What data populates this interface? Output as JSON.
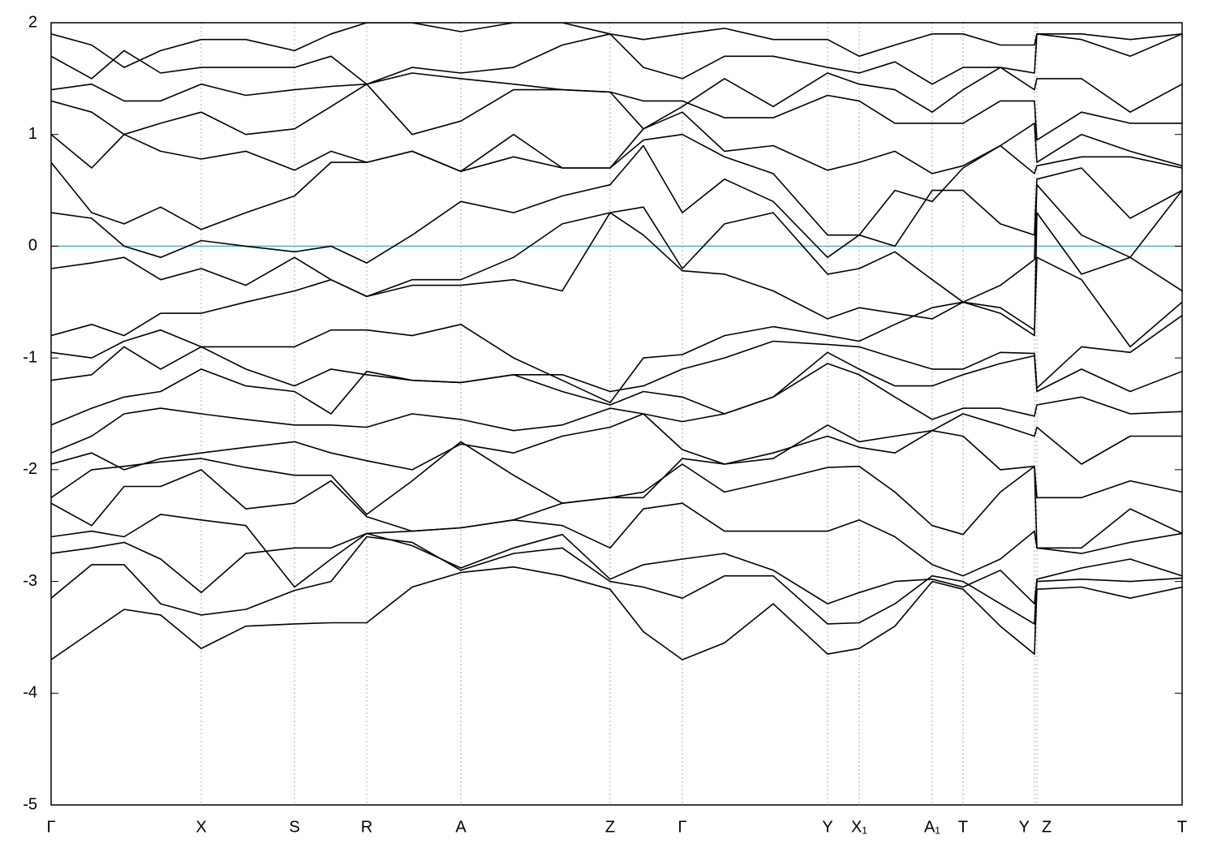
{
  "chart_data": {
    "type": "line",
    "x": [
      0,
      0.5,
      0.9,
      1.35,
      1.85,
      2.4,
      3.0,
      3.45,
      3.89,
      4.45,
      5.05,
      5.7,
      6.3,
      6.89,
      7.3,
      7.78,
      8.3,
      8.9,
      9.57,
      9.96,
      10.4,
      10.86,
      11.24,
      11.7,
      12.12,
      12.15,
      12.7,
      13.3,
      13.94
    ],
    "xlim": [
      0,
      13.94
    ],
    "xticks": [
      {
        "value": 0,
        "label": "Γ"
      },
      {
        "value": 1.85,
        "label": "X"
      },
      {
        "value": 3.0,
        "label": "S"
      },
      {
        "value": 3.89,
        "label": "R"
      },
      {
        "value": 5.05,
        "label": "A"
      },
      {
        "value": 6.89,
        "label": "Z"
      },
      {
        "value": 7.78,
        "label": "Γ"
      },
      {
        "value": 9.57,
        "label": "Y"
      },
      {
        "value": 9.96,
        "label": "X₁"
      },
      {
        "value": 10.86,
        "label": "A₁"
      },
      {
        "value": 11.24,
        "label": "T"
      },
      {
        "value": 12.12,
        "label": "Y"
      },
      {
        "value": 12.15,
        "label": "Z"
      },
      {
        "value": 13.94,
        "label": "T"
      }
    ],
    "ylim": [
      -5,
      2
    ],
    "yticks": [
      -5,
      -4,
      -3,
      -2,
      -1,
      0,
      1,
      2
    ],
    "xgrid": true,
    "line_color": "#000000",
    "reference_line": {
      "value": 0,
      "color": "#5aaec8"
    },
    "series": [
      {
        "values": [
          -3.7,
          -3.45,
          -3.25,
          -3.3,
          -3.6,
          -3.4,
          -3.38,
          -3.37,
          -3.37,
          -3.05,
          -2.92,
          -2.87,
          -2.95,
          -3.07,
          -3.45,
          -3.7,
          -3.55,
          -3.2,
          -3.65,
          -3.6,
          -3.4,
          -3.0,
          -3.07,
          -3.4,
          -3.65,
          -3.07,
          -3.05,
          -3.15,
          -3.05
        ]
      },
      {
        "values": [
          -3.15,
          -2.85,
          -2.85,
          -3.2,
          -3.3,
          -3.25,
          -3.08,
          -3.0,
          -2.6,
          -2.65,
          -2.9,
          -2.75,
          -2.7,
          -3.0,
          -3.05,
          -3.15,
          -2.95,
          -2.95,
          -3.38,
          -3.37,
          -3.2,
          -2.95,
          -3.0,
          -3.2,
          -3.38,
          -3.0,
          -2.98,
          -3.0,
          -2.97
        ]
      },
      {
        "values": [
          -2.75,
          -2.7,
          -2.65,
          -2.8,
          -3.1,
          -2.75,
          -2.7,
          -2.7,
          -2.57,
          -2.68,
          -2.88,
          -2.7,
          -2.58,
          -2.98,
          -2.85,
          -2.8,
          -2.75,
          -2.9,
          -3.2,
          -3.1,
          -3.0,
          -2.98,
          -3.05,
          -2.9,
          -3.2,
          -2.98,
          -2.88,
          -2.8,
          -2.95
        ]
      },
      {
        "values": [
          -2.6,
          -2.55,
          -2.6,
          -2.4,
          -2.45,
          -2.5,
          -3.05,
          -2.8,
          -2.57,
          -2.55,
          -2.52,
          -2.45,
          -2.5,
          -2.7,
          -2.35,
          -2.3,
          -2.55,
          -2.55,
          -2.55,
          -2.45,
          -2.6,
          -2.85,
          -2.95,
          -2.8,
          -2.55,
          -2.7,
          -2.75,
          -2.65,
          -2.57
        ]
      },
      {
        "values": [
          -2.3,
          -2.5,
          -2.15,
          -2.15,
          -2.0,
          -2.35,
          -2.3,
          -2.1,
          -2.42,
          -2.55,
          -2.52,
          -2.45,
          -2.3,
          -2.25,
          -2.2,
          -1.95,
          -2.2,
          -2.1,
          -1.98,
          -1.97,
          -2.2,
          -2.5,
          -2.58,
          -2.2,
          -1.97,
          -2.7,
          -2.7,
          -2.35,
          -2.57
        ]
      },
      {
        "values": [
          -2.25,
          -2.0,
          -1.97,
          -1.93,
          -1.9,
          -1.98,
          -2.05,
          -2.05,
          -2.4,
          -2.1,
          -1.75,
          -2.05,
          -2.3,
          -2.25,
          -2.25,
          -1.9,
          -1.95,
          -1.85,
          -1.7,
          -1.8,
          -1.85,
          -1.65,
          -1.7,
          -2.0,
          -1.97,
          -2.25,
          -2.25,
          -2.1,
          -2.2
        ]
      },
      {
        "values": [
          -1.95,
          -1.85,
          -2.0,
          -1.9,
          -1.85,
          -1.8,
          -1.75,
          -1.85,
          -1.92,
          -2.0,
          -1.77,
          -1.85,
          -1.7,
          -1.62,
          -1.5,
          -1.82,
          -1.95,
          -1.9,
          -1.6,
          -1.75,
          -1.7,
          -1.65,
          -1.5,
          -1.6,
          -1.7,
          -1.62,
          -1.95,
          -1.7,
          -1.7
        ]
      },
      {
        "values": [
          -1.85,
          -1.7,
          -1.5,
          -1.45,
          -1.5,
          -1.55,
          -1.6,
          -1.6,
          -1.62,
          -1.5,
          -1.55,
          -1.65,
          -1.6,
          -1.45,
          -1.5,
          -1.57,
          -1.5,
          -1.35,
          -1.05,
          -1.15,
          -1.35,
          -1.55,
          -1.45,
          -1.45,
          -1.52,
          -1.42,
          -1.35,
          -1.5,
          -1.48
        ]
      },
      {
        "values": [
          -1.6,
          -1.45,
          -1.35,
          -1.3,
          -1.1,
          -1.25,
          -1.3,
          -1.5,
          -1.12,
          -1.2,
          -1.22,
          -1.15,
          -1.3,
          -1.42,
          -1.3,
          -1.35,
          -1.5,
          -1.35,
          -0.95,
          -1.1,
          -1.25,
          -1.25,
          -1.15,
          -1.05,
          -0.98,
          -1.3,
          -1.1,
          -1.3,
          -1.12
        ]
      },
      {
        "values": [
          -1.2,
          -1.15,
          -0.9,
          -1.1,
          -0.9,
          -1.1,
          -1.25,
          -1.1,
          -1.15,
          -1.2,
          -1.22,
          -1.15,
          -1.15,
          -1.3,
          -1.25,
          -1.1,
          -1.0,
          -0.85,
          -0.88,
          -0.9,
          -1.0,
          -1.1,
          -1.1,
          -0.95,
          -0.96,
          -1.27,
          -0.9,
          -0.95,
          -0.62
        ]
      },
      {
        "values": [
          -0.95,
          -1.0,
          -0.85,
          -0.75,
          -0.9,
          -0.9,
          -0.9,
          -0.75,
          -0.75,
          -0.8,
          -0.7,
          -1.0,
          -1.2,
          -1.4,
          -1.0,
          -0.97,
          -0.8,
          -0.72,
          -0.8,
          -0.85,
          -0.7,
          -0.55,
          -0.5,
          -0.55,
          -0.75,
          -0.1,
          -0.3,
          -0.9,
          -0.5
        ]
      },
      {
        "values": [
          -0.8,
          -0.7,
          -0.8,
          -0.6,
          -0.6,
          -0.5,
          -0.4,
          -0.3,
          -0.45,
          -0.35,
          -0.35,
          -0.3,
          -0.4,
          0.3,
          0.1,
          -0.22,
          -0.25,
          -0.4,
          -0.65,
          -0.55,
          -0.6,
          -0.65,
          -0.5,
          -0.6,
          -0.8,
          0.3,
          -0.25,
          -0.1,
          -0.4
        ]
      },
      {
        "values": [
          -0.2,
          -0.15,
          -0.1,
          -0.3,
          -0.2,
          -0.35,
          -0.1,
          -0.3,
          -0.45,
          -0.3,
          -0.3,
          -0.1,
          0.2,
          0.3,
          0.35,
          -0.2,
          0.2,
          0.3,
          -0.25,
          -0.2,
          -0.05,
          -0.3,
          -0.5,
          -0.35,
          -0.12,
          0.55,
          0.1,
          -0.1,
          0.5
        ]
      },
      {
        "values": [
          0.3,
          0.25,
          0.0,
          -0.1,
          0.05,
          0.0,
          -0.05,
          0.0,
          -0.15,
          0.1,
          0.4,
          0.3,
          0.45,
          0.55,
          0.9,
          0.3,
          0.6,
          0.4,
          -0.1,
          0.1,
          0.0,
          0.5,
          0.5,
          0.2,
          0.1,
          0.6,
          0.7,
          0.25,
          0.5
        ]
      },
      {
        "values": [
          0.75,
          0.3,
          0.2,
          0.35,
          0.15,
          0.3,
          0.45,
          0.75,
          0.75,
          0.85,
          0.67,
          0.8,
          0.7,
          0.7,
          0.95,
          1.0,
          0.8,
          0.65,
          0.1,
          0.1,
          0.5,
          0.4,
          0.7,
          0.9,
          0.65,
          0.72,
          0.8,
          0.8,
          0.7
        ]
      },
      {
        "values": [
          1.0,
          0.7,
          1.0,
          0.85,
          0.78,
          0.85,
          0.68,
          0.85,
          0.75,
          0.85,
          0.67,
          1.0,
          0.7,
          0.7,
          1.05,
          1.2,
          0.85,
          0.9,
          0.68,
          0.75,
          0.85,
          0.65,
          0.72,
          0.9,
          1.1,
          0.75,
          1.0,
          0.85,
          0.72
        ]
      },
      {
        "values": [
          1.3,
          1.2,
          1.0,
          1.1,
          1.2,
          1.0,
          1.05,
          1.25,
          1.45,
          1.0,
          1.12,
          1.4,
          1.4,
          1.38,
          1.3,
          1.3,
          1.15,
          1.15,
          1.35,
          1.3,
          1.1,
          1.1,
          1.1,
          1.3,
          1.3,
          0.95,
          1.2,
          1.1,
          1.1
        ]
      },
      {
        "values": [
          1.4,
          1.45,
          1.3,
          1.3,
          1.45,
          1.35,
          1.4,
          1.43,
          1.45,
          1.55,
          1.5,
          1.45,
          1.4,
          1.38,
          1.05,
          1.25,
          1.5,
          1.25,
          1.55,
          1.45,
          1.4,
          1.2,
          1.4,
          1.6,
          1.4,
          1.5,
          1.5,
          1.2,
          1.45
        ]
      },
      {
        "values": [
          1.7,
          1.5,
          1.75,
          1.55,
          1.6,
          1.6,
          1.6,
          1.7,
          1.45,
          1.6,
          1.55,
          1.6,
          1.8,
          1.9,
          1.6,
          1.5,
          1.7,
          1.7,
          1.6,
          1.55,
          1.65,
          1.45,
          1.6,
          1.6,
          1.55,
          1.9,
          1.85,
          1.7,
          1.9
        ]
      },
      {
        "values": [
          1.9,
          1.8,
          1.6,
          1.75,
          1.85,
          1.85,
          1.75,
          1.9,
          2.0,
          2.0,
          1.92,
          2.0,
          2.0,
          1.9,
          1.85,
          1.9,
          1.95,
          1.85,
          1.85,
          1.7,
          1.8,
          1.9,
          1.9,
          1.8,
          1.8,
          1.9,
          1.9,
          1.85,
          1.9
        ]
      }
    ]
  }
}
